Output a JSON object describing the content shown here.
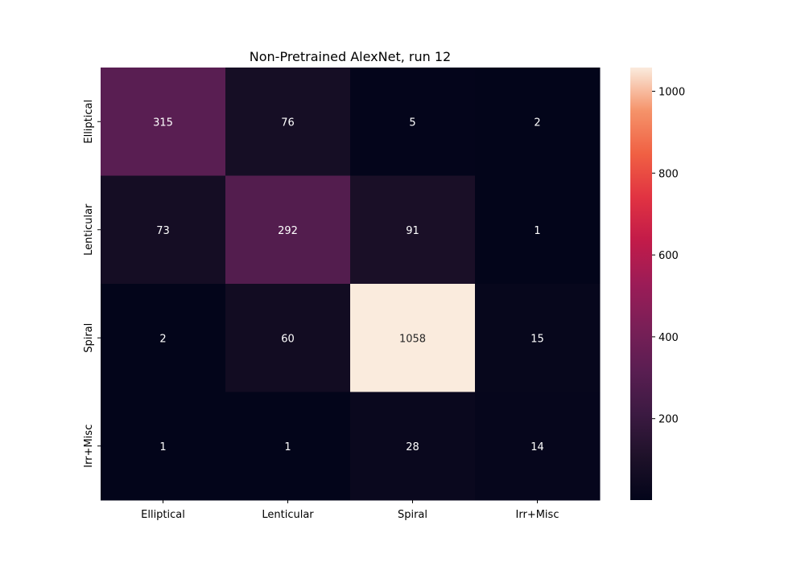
{
  "chart_data": {
    "type": "heatmap",
    "title": "Non-Pretrained AlexNet, run 12",
    "xlabel": "",
    "ylabel": "",
    "x_categories": [
      "Elliptical",
      "Lenticular",
      "Spiral",
      "Irr+Misc"
    ],
    "y_categories": [
      "Elliptical",
      "Lenticular",
      "Spiral",
      "Irr+Misc"
    ],
    "values": [
      [
        315,
        76,
        5,
        2
      ],
      [
        73,
        292,
        91,
        1
      ],
      [
        2,
        60,
        1058,
        15
      ],
      [
        1,
        1,
        28,
        14
      ]
    ],
    "colormap": "rocket",
    "color_range": [
      1,
      1058
    ],
    "colorbar_ticks": [
      200,
      400,
      600,
      800,
      1000
    ],
    "grid": false,
    "annotations": true
  }
}
